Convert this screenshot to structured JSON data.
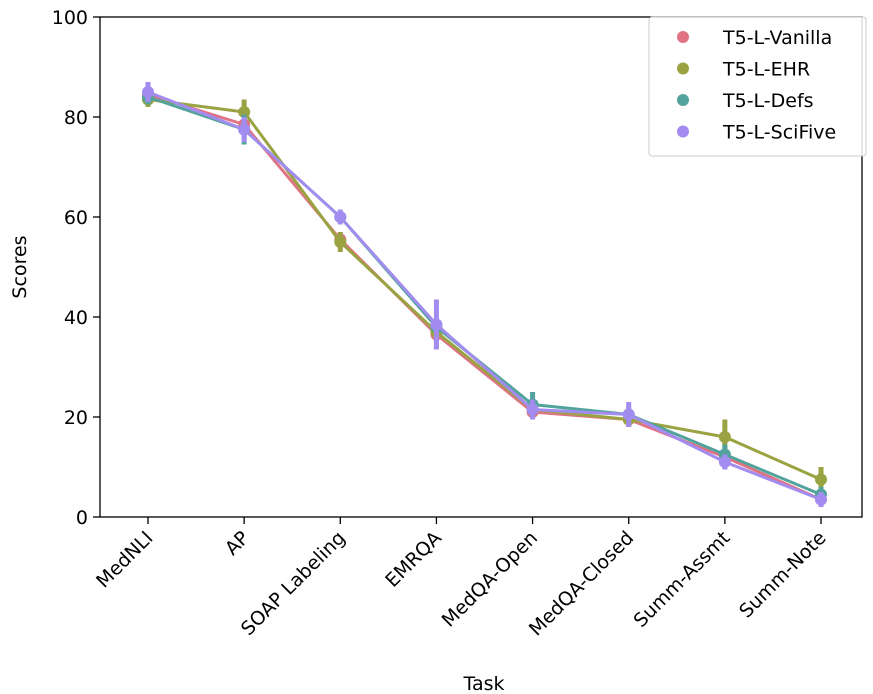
{
  "chart_data": {
    "type": "line",
    "xlabel": "Task",
    "ylabel": "Scores",
    "ylim": [
      0,
      100
    ],
    "yticks": [
      0,
      20,
      40,
      60,
      80,
      100
    ],
    "categories": [
      "MedNLI",
      "AP",
      "SOAP Labeling",
      "EMRQA",
      "MedQA-Open",
      "MedQA-Closed",
      "Summ-Assmt",
      "Summ-Note"
    ],
    "legend_position": "top-right",
    "grid": false,
    "series": [
      {
        "name": "T5-L-Vanilla",
        "color": "#e07383",
        "values": [
          84.5,
          78.5,
          55.5,
          36.5,
          21,
          19.5,
          12,
          3.5
        ],
        "err": [
          1.5,
          2,
          1.5,
          2,
          1.5,
          1.5,
          1.5,
          1
        ]
      },
      {
        "name": "T5-L-EHR",
        "color": "#9aa342",
        "values": [
          83.5,
          81,
          55,
          37,
          21.5,
          19.5,
          16,
          7.5
        ],
        "err": [
          1.5,
          2.5,
          2,
          2,
          1.5,
          1.5,
          3.5,
          2.5
        ]
      },
      {
        "name": "T5-L-Defs",
        "color": "#52a39c",
        "values": [
          84,
          77.5,
          60,
          38,
          22.5,
          20.5,
          12.5,
          4.5
        ],
        "err": [
          1.5,
          3,
          1,
          2,
          2.5,
          1.5,
          2,
          1.5
        ]
      },
      {
        "name": "T5-L-SciFive",
        "color": "#a38cf0",
        "values": [
          85,
          77.5,
          60,
          38.5,
          21.5,
          20.5,
          11,
          3.5
        ],
        "err": [
          2,
          2.5,
          1.5,
          5,
          2,
          2.5,
          1.5,
          1.5
        ]
      }
    ]
  }
}
